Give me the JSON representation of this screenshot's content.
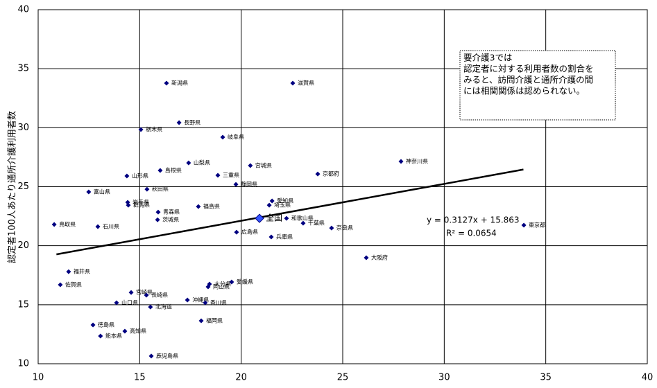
{
  "chart_data": {
    "type": "scatter",
    "y_label": "認定者100人あたり通所介護利用者数",
    "xlim": [
      10,
      40
    ],
    "xticks": [
      10,
      15,
      20,
      25,
      30,
      35,
      40
    ],
    "ylim": [
      10,
      40
    ],
    "yticks": [
      10,
      15,
      20,
      25,
      30,
      35,
      40
    ],
    "grid": true,
    "color": "#000080",
    "labels": [
      "新潟県",
      "滋賀県",
      "長野県",
      "栃木県",
      "岐阜県",
      "神奈川県",
      "山梨県",
      "宮城県",
      "島根県",
      "山形県",
      "三重県",
      "京都府",
      "静岡県",
      "秋田県",
      "富山県",
      "愛知県",
      "埼玉県",
      "岩手県",
      "群馬県",
      "福島県",
      "青森県",
      "和歌山県",
      "茨城県",
      "千葉県",
      "鳥取県",
      "東京都",
      "石川県",
      "奈良県",
      "広島県",
      "兵庫県",
      "大阪府",
      "福井県",
      "佐賀県",
      "愛媛県",
      "大分県",
      "岡山県",
      "宮崎県",
      "長崎県",
      "沖縄県",
      "香川県",
      "山口県",
      "北海道",
      "徳島県",
      "高知県",
      "熊本県",
      "福岡県",
      "鹿児島県"
    ],
    "x": [
      16.32,
      22.54,
      16.94,
      15.06,
      19.09,
      27.87,
      17.41,
      20.45,
      16.01,
      14.37,
      18.85,
      23.77,
      19.74,
      15.36,
      12.49,
      21.52,
      21.38,
      14.41,
      14.44,
      17.89,
      15.91,
      22.23,
      15.88,
      23.05,
      10.79,
      33.92,
      12.94,
      24.45,
      19.77,
      21.48,
      26.16,
      11.5,
      11.09,
      19.53,
      18.44,
      18.37,
      14.58,
      15.33,
      17.35,
      18.23,
      13.86,
      15.53,
      12.7,
      14.27,
      13.07,
      18.03,
      15.57
    ],
    "y": [
      33.78,
      33.78,
      30.43,
      29.84,
      29.2,
      27.14,
      27.02,
      26.79,
      26.38,
      25.91,
      25.97,
      26.08,
      25.2,
      24.79,
      24.56,
      23.8,
      23.44,
      23.68,
      23.44,
      23.32,
      22.85,
      22.32,
      22.2,
      21.91,
      21.8,
      21.74,
      21.62,
      21.5,
      21.15,
      20.74,
      18.98,
      17.8,
      16.69,
      16.93,
      16.75,
      16.52,
      16.04,
      15.81,
      15.4,
      15.17,
      15.17,
      14.81,
      13.29,
      12.76,
      12.35,
      13.64,
      10.65
    ],
    "national": {
      "label": "全国",
      "x": 20.9,
      "y": 22.32
    },
    "trendline": {
      "x": [
        10.9,
        33.9
      ],
      "y": [
        19.27,
        26.46
      ],
      "equation": "y = 0.3127x + 15.863",
      "r2": "R² = 0.0654"
    },
    "note": [
      "要介護3では",
      "認定者に対する利用者数の割合を",
      "みると、訪問介護と通所介護の間",
      "には相関関係は認められない。"
    ]
  }
}
